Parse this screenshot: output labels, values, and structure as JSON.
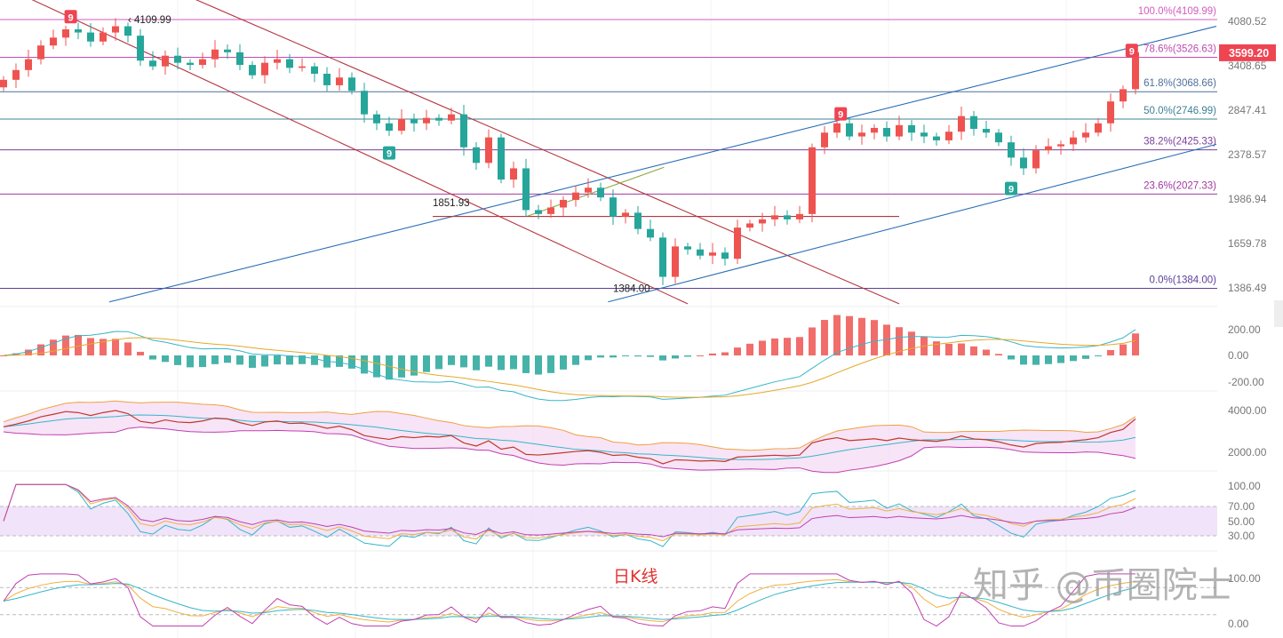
{
  "chart_data": {
    "type": "candlestick",
    "yscale": "log",
    "colors": {
      "up": "#ef5350",
      "down": "#26a69a",
      "last_price_bg": "#ef4452"
    },
    "last_price": "3599.20",
    "price_axis_ticks": [
      "4080.52",
      "3408.65",
      "2847.41",
      "2378.57",
      "1986.94",
      "1659.78",
      "1386.49"
    ],
    "price_axis_values": [
      4080.52,
      3408.65,
      2847.41,
      2378.57,
      1986.94,
      1659.78,
      1386.49
    ],
    "closes": [
      3220,
      3350,
      3500,
      3700,
      3820,
      3950,
      3900,
      3760,
      3900,
      4000,
      3850,
      3480,
      3400,
      3550,
      3450,
      3420,
      3500,
      3640,
      3600,
      3420,
      3280,
      3450,
      3500,
      3380,
      3400,
      3300,
      3150,
      3250,
      3080,
      2800,
      2700,
      2620,
      2750,
      2700,
      2760,
      2730,
      2800,
      2450,
      2300,
      2550,
      2150,
      2250,
      1900,
      1870,
      1920,
      1980,
      2040,
      2080,
      2000,
      1850,
      1880,
      1760,
      1700,
      1450,
      1640,
      1620,
      1580,
      1600,
      1560,
      1770,
      1800,
      1830,
      1860,
      1830,
      1870,
      2450,
      2600,
      2700,
      2560,
      2600,
      2650,
      2560,
      2680,
      2600,
      2560,
      2520,
      2610,
      2780,
      2640,
      2600,
      2500,
      2350,
      2250,
      2420,
      2460,
      2480,
      2550,
      2600,
      2700,
      2950,
      3100,
      3599.2
    ],
    "fib_levels": [
      {
        "label": "100.0%(4109.99)",
        "price": 4109.99,
        "color": "#d45bc0"
      },
      {
        "label": "78.6%(3526.63)",
        "price": 3526.63,
        "color": "#c04bb0"
      },
      {
        "label": "61.8%(3068.66)",
        "price": 3068.66,
        "color": "#4f6f9a"
      },
      {
        "label": "50.0%(2746.99)",
        "price": 2746.99,
        "color": "#3f7f95"
      },
      {
        "label": "38.2%(2425.33)",
        "price": 2425.33,
        "color": "#7a3f9a"
      },
      {
        "label": "23.6%(2027.33)",
        "price": 2027.33,
        "color": "#a03aa0"
      },
      {
        "label": "0.0%(1384.00)",
        "price": 1384.0,
        "color": "#5a3f9a"
      }
    ],
    "trend_lines": [
      {
        "name": "descending-channel-upper",
        "color": "#b5363f",
        "from": {
          "i": 15,
          "price": 4500
        },
        "to": {
          "i": 72,
          "price": 1300
        }
      },
      {
        "name": "descending-channel-lower",
        "color": "#b5363f",
        "from": {
          "i": 0,
          "price": 4700
        },
        "to": {
          "i": 55,
          "price": 1300
        }
      },
      {
        "name": "ascending-channel-upper",
        "color": "#2a6fb5",
        "from": {
          "i": 8.5,
          "price": 1310
        },
        "to": {
          "i": 97.5,
          "price": 4000
        }
      },
      {
        "name": "ascending-channel-lower",
        "color": "#2a6fb5",
        "from": {
          "i": 48.6,
          "price": 1310
        },
        "to": {
          "i": 97.5,
          "price": 2480
        }
      },
      {
        "name": "wedge-line",
        "color": "#8aa83a",
        "from": {
          "i": 42,
          "price": 1850
        },
        "to": {
          "i": 53.1,
          "price": 2260
        }
      },
      {
        "name": "support-1851.93",
        "color": "#b5363f",
        "from": {
          "i": 34.5,
          "price": 1851.93
        },
        "to": {
          "i": 72,
          "price": 1851.93
        }
      }
    ],
    "annotations": [
      {
        "text": "4109.99",
        "i": 10,
        "price": 4109.99,
        "arrow": "‹ "
      },
      {
        "text": "1851.93",
        "i": 34.5,
        "price": 1960,
        "color": "#b5363f"
      },
      {
        "text": "1384.00",
        "i": 49,
        "price": 1384
      }
    ],
    "td_markers": [
      {
        "text": "9",
        "i": 5.4,
        "price": 4150,
        "color": "#ef4452"
      },
      {
        "text": "9",
        "i": 31,
        "price": 2390,
        "color": "#26a69a"
      },
      {
        "text": "9",
        "i": 67.3,
        "price": 2800,
        "color": "#ef4452"
      },
      {
        "text": "9",
        "i": 81,
        "price": 2070,
        "color": "#26a69a"
      },
      {
        "text": "9",
        "i": 90.7,
        "price": 3620,
        "color": "#ef4452"
      }
    ],
    "macd_panel": {
      "ticks": [
        "200.00",
        "0.00",
        "-200.00"
      ],
      "range": [
        -200,
        200
      ]
    },
    "boll_panel": {
      "ticks": [
        "4000.00",
        "2000.00"
      ],
      "range": [
        2000,
        4000
      ]
    },
    "rsi_panel": {
      "ticks": [
        "100.00",
        "70.00",
        "50.00",
        "30.00"
      ],
      "band": [
        30,
        70
      ]
    },
    "kdj_panel": {
      "ticks": [
        "100.00",
        "0.00"
      ]
    }
  },
  "caption": "日K线",
  "watermark": "知乎 @币圈院士"
}
